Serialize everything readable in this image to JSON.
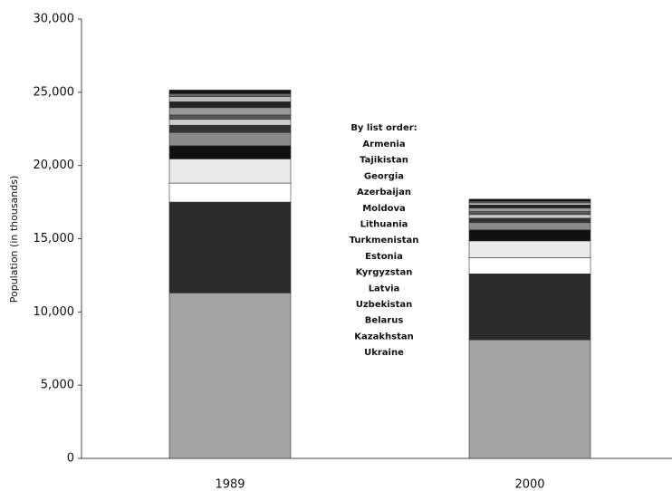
{
  "chart_data": {
    "type": "stacked_bar",
    "y_label": "Population (in thousands)",
    "legend_title": "By list order:",
    "categories": [
      "1989",
      "2000"
    ],
    "ylim": [
      0,
      30000
    ],
    "yticks": [
      0,
      {
        "value": 5000,
        "label": "5,000"
      },
      {
        "value": 10000,
        "label": "10,000"
      },
      {
        "value": 15000,
        "label": "15,000"
      },
      {
        "value": 20000,
        "label": "20,000"
      },
      {
        "value": 25000,
        "label": "25,000"
      },
      {
        "value": 30000,
        "label": "30,000"
      }
    ],
    "series": [
      {
        "name": "Ukraine",
        "color": "#a3a3a3",
        "values": [
          11300,
          8100
        ]
      },
      {
        "name": "Kazakhstan",
        "color": "#2b2b2b",
        "values": [
          6200,
          4500
        ]
      },
      {
        "name": "Belarus",
        "color": "#ffffff",
        "values": [
          1300,
          1100
        ]
      },
      {
        "name": "Uzbekistan",
        "color": "#eaeaea",
        "values": [
          1650,
          1150
        ]
      },
      {
        "name": "Latvia",
        "color": "#111111",
        "values": [
          900,
          750
        ]
      },
      {
        "name": "Kyrgyzstan",
        "color": "#8a8a8a",
        "values": [
          900,
          500
        ]
      },
      {
        "name": "Estonia",
        "color": "#333333",
        "values": [
          500,
          300
        ]
      },
      {
        "name": "Turkmenistan",
        "color": "#cccccc",
        "values": [
          400,
          250
        ]
      },
      {
        "name": "Lithuania",
        "color": "#555555",
        "values": [
          300,
          200
        ]
      },
      {
        "name": "Moldova",
        "color": "#999999",
        "values": [
          500,
          250
        ]
      },
      {
        "name": "Azerbaijan",
        "color": "#222222",
        "values": [
          400,
          200
        ]
      },
      {
        "name": "Georgia",
        "color": "#bbbbbb",
        "values": [
          350,
          150
        ]
      },
      {
        "name": "Tajikistan",
        "color": "#666666",
        "values": [
          200,
          100
        ]
      },
      {
        "name": "Armenia",
        "color": "#111111",
        "values": [
          250,
          150
        ]
      }
    ]
  }
}
